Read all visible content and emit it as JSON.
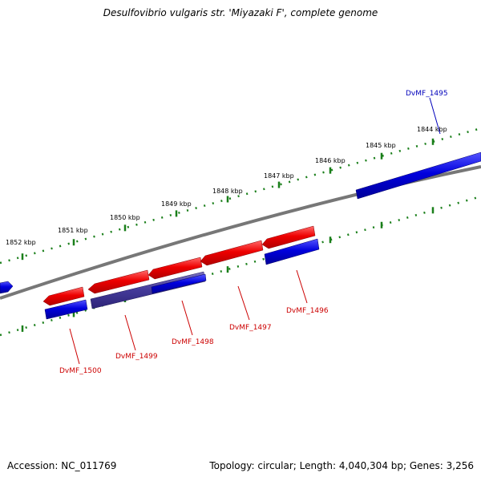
{
  "title": "Desulfovibrio vulgaris str. 'Miyazaki F', complete genome",
  "accession": "Accession: NC_011769",
  "summary": "Topology: circular; Length: 4,040,304 bp; Genes: 3,256",
  "colors": {
    "forward_gene": "#ee0000",
    "reverse_gene": "#0000dd",
    "overlap_gene": "#443a99",
    "backbone": "#777777",
    "ticks": "#1a7f1a",
    "forward_label": "#cc0000",
    "reverse_label": "#0000bb"
  },
  "scale_labels": [
    "1852 kbp",
    "1851 kbp",
    "1850 kbp",
    "1849 kbp",
    "1848 kbp",
    "1847 kbp",
    "1846 kbp",
    "1845 kbp",
    "1844 kbp"
  ],
  "gene_labels": [
    {
      "text": "DvMF_1495",
      "strand": "reverse"
    },
    {
      "text": "DvMF_1496",
      "strand": "forward"
    },
    {
      "text": "DvMF_1497",
      "strand": "forward"
    },
    {
      "text": "DvMF_1498",
      "strand": "forward"
    },
    {
      "text": "DvMF_1499",
      "strand": "forward"
    },
    {
      "text": "DvMF_1500",
      "strand": "forward"
    }
  ]
}
